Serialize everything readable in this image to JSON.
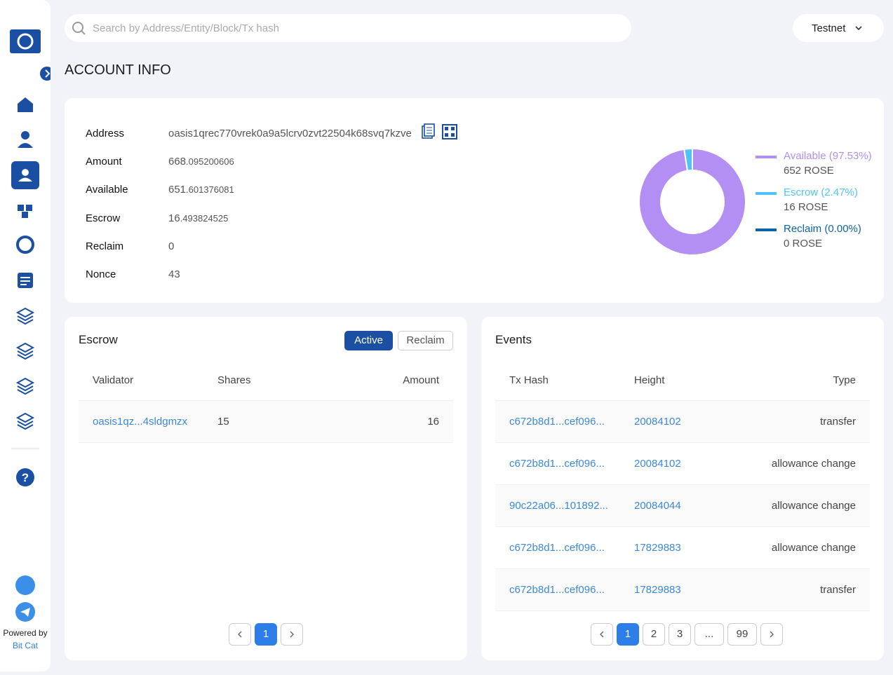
{
  "search": {
    "placeholder": "Search by Address/Entity/Block/Tx hash"
  },
  "network": "Testnet",
  "page_title": "ACCOUNT INFO",
  "account": {
    "rows": [
      {
        "label": "Address",
        "value": "oasis1qrec770vrek0a9a5lcrv0zvt22504k68svq7kzve"
      },
      {
        "label": "Amount",
        "int": "668",
        "dec": ".095200606"
      },
      {
        "label": "Available",
        "int": "651",
        "dec": ".601376081"
      },
      {
        "label": "Escrow",
        "int": "16",
        "dec": ".493824525"
      },
      {
        "label": "Reclaim",
        "value": "0"
      },
      {
        "label": "Nonce",
        "value": "43"
      }
    ]
  },
  "donut": {
    "segments": [
      {
        "label": "Available (97.53%)",
        "value": 97.53,
        "amount": "652 ROSE",
        "color": "#b38ef3"
      },
      {
        "label": "Escrow (2.47%)",
        "value": 2.47,
        "amount": "16 ROSE",
        "color": "#4fc3f7"
      },
      {
        "label": "Reclaim (0.00%)",
        "value": 0,
        "amount": "0 ROSE",
        "color": "#0e63a6"
      }
    ]
  },
  "escrow": {
    "title": "Escrow",
    "tabs": [
      "Active",
      "Reclaim"
    ],
    "columns": [
      "Validator",
      "Shares",
      "Amount"
    ],
    "rows": [
      [
        "oasis1qz...4sldgmzx",
        "15",
        "16"
      ]
    ],
    "pages": [
      "1"
    ]
  },
  "events": {
    "title": "Events",
    "columns": [
      "Tx Hash",
      "Height",
      "Type"
    ],
    "rows": [
      [
        "c672b8d1...cef096...",
        "20084102",
        "transfer"
      ],
      [
        "c672b8d1...cef096...",
        "20084102",
        "allowance change"
      ],
      [
        "90c22a06...101892...",
        "20084044",
        "allowance change"
      ],
      [
        "c672b8d1...cef096...",
        "17829883",
        "allowance change"
      ],
      [
        "c672b8d1...cef096...",
        "17829883",
        "transfer"
      ]
    ],
    "pages": [
      "1",
      "2",
      "3",
      "...",
      "99"
    ]
  },
  "footer": {
    "powered": "Powered by",
    "brand": "Bit Cat"
  }
}
